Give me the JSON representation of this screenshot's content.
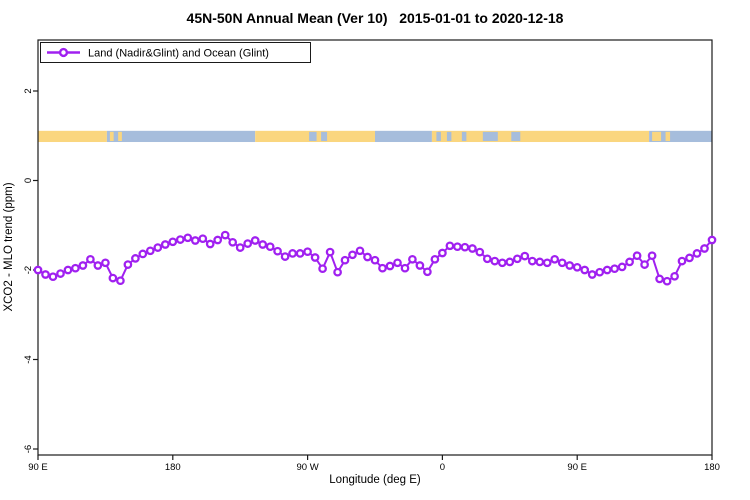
{
  "colors": {
    "series_purple": "#A020F0",
    "marker_fill": "#ffffff",
    "land": "#FAD67F",
    "ocean": "#A6BDDC",
    "axis": "#1a1a1a",
    "background": "#ffffff"
  },
  "map_strip": {
    "top_value": 1.11,
    "bottom_value": 0.86,
    "segments": [
      {
        "from": 90,
        "to": 136,
        "surface": "land"
      },
      {
        "from": 136,
        "to": 235,
        "surface": "ocean"
      },
      {
        "from": 235,
        "to": 315,
        "surface": "land"
      },
      {
        "from": 315,
        "to": 353,
        "surface": "ocean"
      },
      {
        "from": 353,
        "to": 498,
        "surface": "land"
      },
      {
        "from": 498,
        "to": 540,
        "surface": "ocean"
      }
    ],
    "patches": [
      {
        "from": 138,
        "to": 140.5,
        "surface": "land"
      },
      {
        "from": 143.5,
        "to": 146,
        "surface": "land"
      },
      {
        "from": 271,
        "to": 276,
        "surface": "ocean"
      },
      {
        "from": 279,
        "to": 283,
        "surface": "ocean"
      },
      {
        "from": 356,
        "to": 359,
        "surface": "ocean"
      },
      {
        "from": 363,
        "to": 366,
        "surface": "ocean"
      },
      {
        "from": 373,
        "to": 376,
        "surface": "ocean"
      },
      {
        "from": 387,
        "to": 397,
        "surface": "ocean"
      },
      {
        "from": 406,
        "to": 412,
        "surface": "ocean"
      },
      {
        "from": 500,
        "to": 506,
        "surface": "land"
      },
      {
        "from": 509,
        "to": 512,
        "surface": "land"
      }
    ]
  },
  "chart_data": {
    "type": "line",
    "title": "45N-50N Annual Mean (Ver 10)   2015-01-01 to 2020-12-18",
    "xlabel": "Longitude (deg E)",
    "ylabel": "XCO2 - MLO trend (ppm)",
    "xlim": [
      90,
      540
    ],
    "ylim": [
      -6.15,
      3.15
    ],
    "grid": false,
    "legend_position": "top-left",
    "x_ticks": [
      {
        "value": 90,
        "label": "90 E"
      },
      {
        "value": 180,
        "label": "180"
      },
      {
        "value": 270,
        "label": "90 W"
      },
      {
        "value": 360,
        "label": "0"
      },
      {
        "value": 450,
        "label": "90 E"
      },
      {
        "value": 540,
        "label": "180"
      }
    ],
    "y_ticks": [
      {
        "value": 2,
        "label": "2"
      },
      {
        "value": 0,
        "label": "0"
      },
      {
        "value": -2,
        "label": "-2"
      },
      {
        "value": -4,
        "label": "-4"
      },
      {
        "value": -6,
        "label": "-6"
      }
    ],
    "series": [
      {
        "name": "Land (Nadir&Glint) and Ocean (Glint)",
        "color": "#A020F0",
        "marker": "open-circle",
        "x": [
          90,
          95,
          100,
          105,
          110,
          115,
          120,
          125,
          130,
          135,
          140,
          145,
          150,
          155,
          160,
          165,
          170,
          175,
          180,
          185,
          190,
          195,
          200,
          205,
          210,
          215,
          220,
          225,
          230,
          235,
          240,
          245,
          250,
          255,
          260,
          265,
          270,
          275,
          280,
          285,
          290,
          295,
          300,
          305,
          310,
          315,
          320,
          325,
          330,
          335,
          340,
          345,
          350,
          355,
          360,
          365,
          370,
          375,
          380,
          385,
          390,
          395,
          400,
          405,
          410,
          415,
          420,
          425,
          430,
          435,
          440,
          445,
          450,
          455,
          460,
          465,
          470,
          475,
          480,
          485,
          490,
          495,
          500,
          505,
          510,
          515,
          520,
          525,
          530,
          535,
          540
        ],
        "values": [
          -2.0,
          -2.1,
          -2.15,
          -2.08,
          -2.0,
          -1.96,
          -1.9,
          -1.76,
          -1.9,
          -1.84,
          -2.18,
          -2.24,
          -1.88,
          -1.74,
          -1.64,
          -1.57,
          -1.5,
          -1.43,
          -1.37,
          -1.32,
          -1.28,
          -1.34,
          -1.3,
          -1.42,
          -1.33,
          -1.22,
          -1.38,
          -1.5,
          -1.41,
          -1.34,
          -1.43,
          -1.48,
          -1.58,
          -1.7,
          -1.63,
          -1.63,
          -1.59,
          -1.72,
          -1.97,
          -1.6,
          -2.05,
          -1.78,
          -1.66,
          -1.57,
          -1.71,
          -1.78,
          -1.96,
          -1.91,
          -1.84,
          -1.96,
          -1.76,
          -1.9,
          -2.04,
          -1.76,
          -1.62,
          -1.46,
          -1.48,
          -1.49,
          -1.52,
          -1.6,
          -1.75,
          -1.8,
          -1.84,
          -1.82,
          -1.75,
          -1.69,
          -1.8,
          -1.82,
          -1.84,
          -1.76,
          -1.84,
          -1.9,
          -1.94,
          -2.0,
          -2.1,
          -2.05,
          -2.0,
          -1.97,
          -1.93,
          -1.82,
          -1.68,
          -1.88,
          -1.68,
          -2.2,
          -2.25,
          -2.14,
          -1.8,
          -1.73,
          -1.63,
          -1.52,
          -1.33
        ]
      }
    ]
  }
}
